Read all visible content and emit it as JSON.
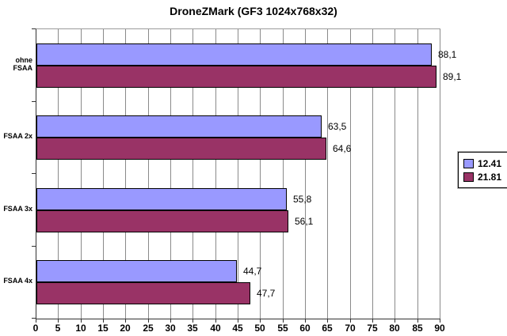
{
  "title": "DroneZMark (GF3 1024x768x32)",
  "chart_data": {
    "type": "bar",
    "orientation": "horizontal",
    "title": "DroneZMark (GF3 1024x768x32)",
    "categories": [
      "ohne FSAA",
      "FSAA 2x",
      "FSAA 3x",
      "FSAA 4x"
    ],
    "series": [
      {
        "name": "12.41",
        "color": "#9999FF",
        "values": [
          88.1,
          63.5,
          55.8,
          44.7
        ],
        "value_labels": [
          "88,1",
          "63,5",
          "55,8",
          "44,7"
        ]
      },
      {
        "name": "21.81",
        "color": "#993366",
        "values": [
          89.1,
          64.6,
          56.1,
          47.7
        ],
        "value_labels": [
          "89,1",
          "64,6",
          "56,1",
          "47,7"
        ]
      }
    ],
    "xlabel": "",
    "ylabel": "",
    "xlim": [
      0,
      90
    ],
    "x_tick_step": 5,
    "x_tick_labels": [
      "0",
      "5",
      "10",
      "15",
      "20",
      "25",
      "30",
      "35",
      "40",
      "45",
      "50",
      "55",
      "60",
      "65",
      "70",
      "75",
      "80",
      "85",
      "90"
    ],
    "grid": "vertical-major",
    "legend": {
      "position": "right",
      "entries": [
        "12.41",
        "21.81"
      ]
    },
    "colors": {
      "background": "#FFFFFF",
      "gridline": "#8A8A8A",
      "axis": "#333333",
      "bar_border": "#000000",
      "text": "#000000"
    }
  }
}
